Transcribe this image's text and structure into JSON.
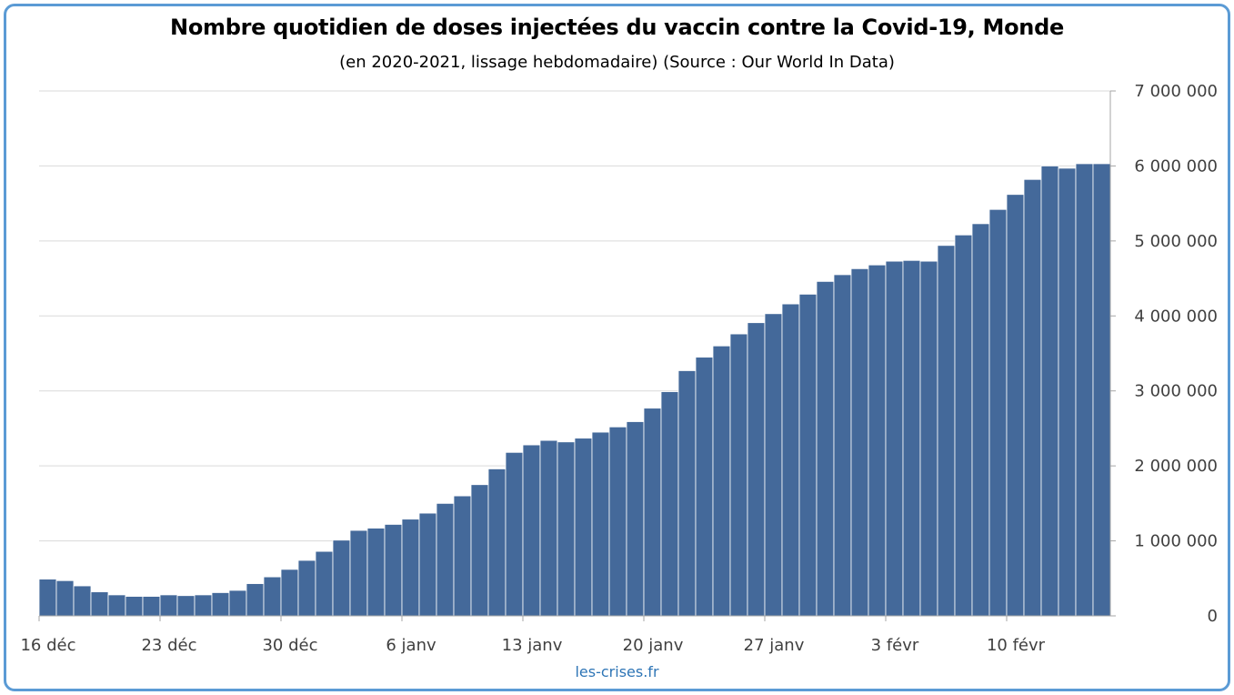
{
  "chart_data": {
    "type": "bar",
    "title": "Nombre quotidien de doses injectées du vaccin contre la Covid-19, Monde",
    "subtitle": "(en 2020-2021, lissage hebdomadaire) (Source : Our World In Data)",
    "source_credit": "les-crises.fr",
    "xlabel": "",
    "ylabel": "",
    "ylim": [
      0,
      7000000
    ],
    "y_axis_position": "right",
    "grid": true,
    "legend": "none",
    "x_tick_labels": [
      "16 déc",
      "23 déc",
      "30 déc",
      "6 janv",
      "13 janv",
      "20 janv",
      "27 janv",
      "3 févr",
      "10 févr"
    ],
    "y_tick_labels": [
      "0",
      "1 000 000",
      "2 000 000",
      "3 000 000",
      "4 000 000",
      "5 000 000",
      "6 000 000",
      "7 000 000"
    ],
    "y_ticks": [
      0,
      1000000,
      2000000,
      3000000,
      4000000,
      5000000,
      6000000,
      7000000
    ],
    "categories": [
      "16 déc",
      "17 déc",
      "18 déc",
      "19 déc",
      "20 déc",
      "21 déc",
      "22 déc",
      "23 déc",
      "24 déc",
      "25 déc",
      "26 déc",
      "27 déc",
      "28 déc",
      "29 déc",
      "30 déc",
      "31 déc",
      "1 janv",
      "2 janv",
      "3 janv",
      "4 janv",
      "5 janv",
      "6 janv",
      "7 janv",
      "8 janv",
      "9 janv",
      "10 janv",
      "11 janv",
      "12 janv",
      "13 janv",
      "14 janv",
      "15 janv",
      "16 janv",
      "17 janv",
      "18 janv",
      "19 janv",
      "20 janv",
      "21 janv",
      "22 janv",
      "23 janv",
      "24 janv",
      "25 janv",
      "26 janv",
      "27 janv",
      "28 janv",
      "29 janv",
      "30 janv",
      "31 janv",
      "1 févr",
      "2 févr",
      "3 févr",
      "4 févr",
      "5 févr",
      "6 févr",
      "7 févr",
      "8 févr",
      "9 févr",
      "10 févr",
      "11 févr",
      "12 févr",
      "13 févr",
      "14 févr",
      "15 févr"
    ],
    "values": [
      490000,
      470000,
      400000,
      320000,
      280000,
      260000,
      260000,
      280000,
      270000,
      280000,
      310000,
      340000,
      430000,
      520000,
      620000,
      740000,
      860000,
      1010000,
      1140000,
      1170000,
      1220000,
      1290000,
      1370000,
      1500000,
      1600000,
      1750000,
      1960000,
      2180000,
      2280000,
      2340000,
      2320000,
      2370000,
      2450000,
      2520000,
      2590000,
      2770000,
      2990000,
      3270000,
      3450000,
      3600000,
      3760000,
      3910000,
      4030000,
      4160000,
      4290000,
      4460000,
      4550000,
      4630000,
      4680000,
      4730000,
      4740000,
      4730000,
      4940000,
      5080000,
      5230000,
      5420000,
      5620000,
      5820000,
      6000000,
      5970000,
      6030000,
      6030000
    ],
    "colors": {
      "bar": "#44699a",
      "bar_edge": "#ffffff",
      "grid": "#d9d9d9",
      "axis": "#a6a6a6",
      "frame": "#5b9bd5",
      "credit": "#2e75b6"
    }
  }
}
